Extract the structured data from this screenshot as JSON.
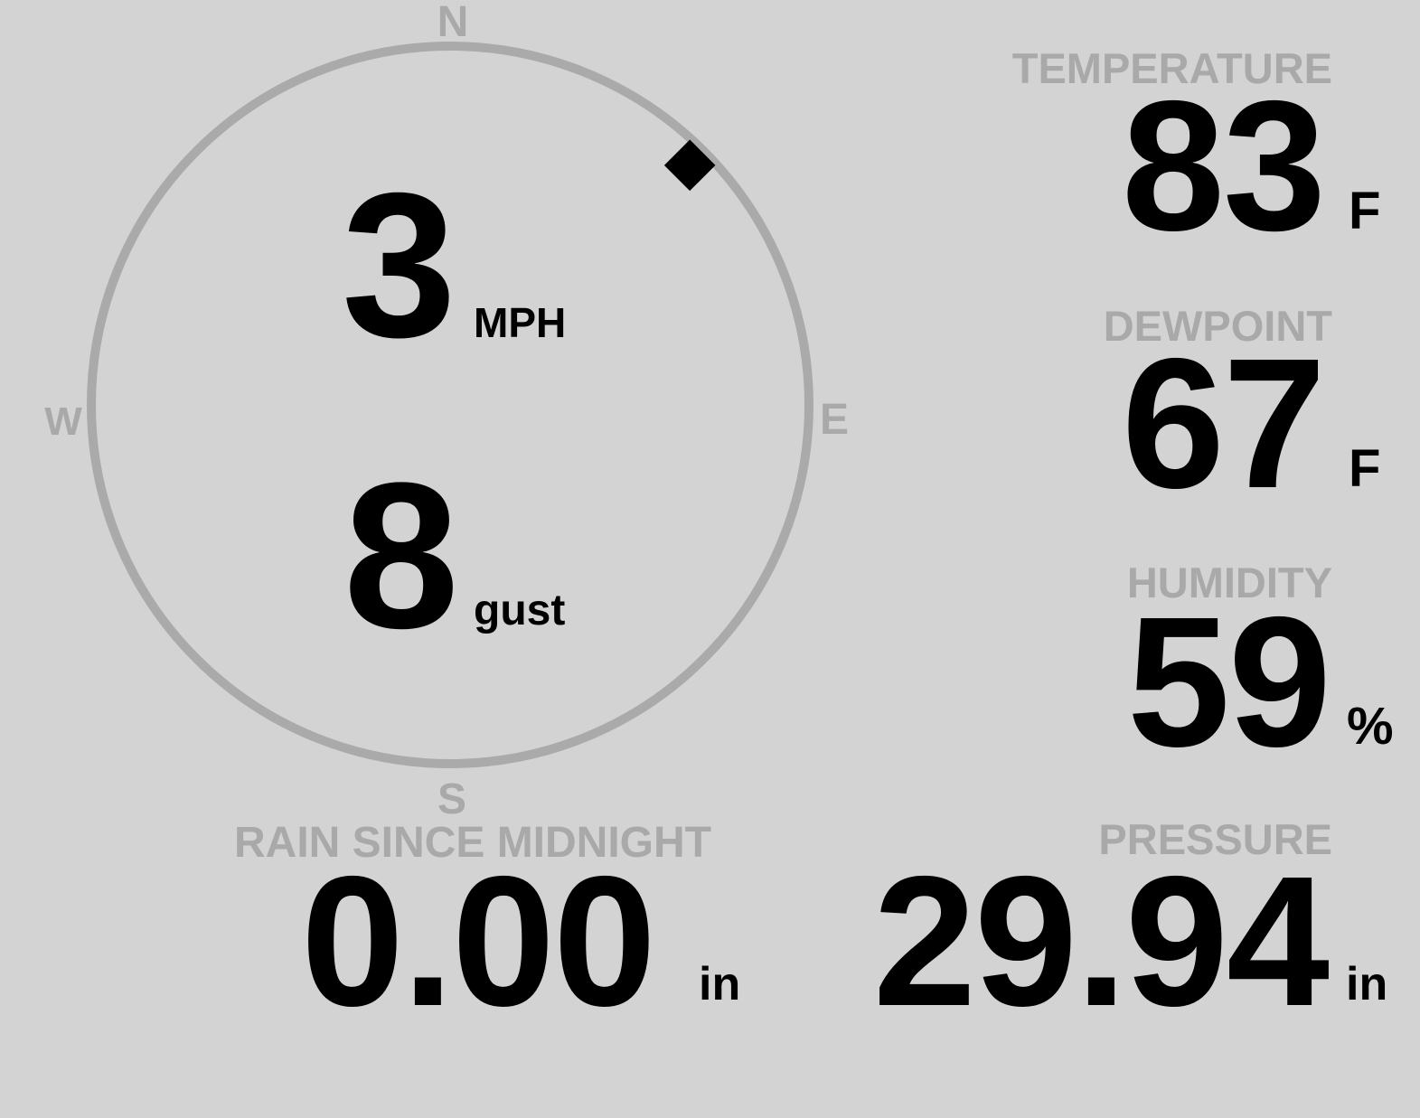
{
  "wind": {
    "compass": {
      "n": "N",
      "e": "E",
      "s": "S",
      "w": "W"
    },
    "direction_degrees": 45,
    "speed": "3",
    "speed_unit": "MPH",
    "gust": "8",
    "gust_label": "gust"
  },
  "temperature": {
    "label": "TEMPERATURE",
    "value": "83",
    "unit": "F"
  },
  "dewpoint": {
    "label": "DEWPOINT",
    "value": "67",
    "unit": "F"
  },
  "humidity": {
    "label": "HUMIDITY",
    "value": "59",
    "unit": "%"
  },
  "rain": {
    "label": "RAIN SINCE MIDNIGHT",
    "value": "0.00",
    "unit": "in"
  },
  "pressure": {
    "label": "PRESSURE",
    "value": "29.94",
    "unit": "in"
  },
  "colors": {
    "background": "#d3d3d3",
    "label": "#a9a9a9",
    "value": "#000000",
    "compass_ring": "#aaaaaa"
  }
}
